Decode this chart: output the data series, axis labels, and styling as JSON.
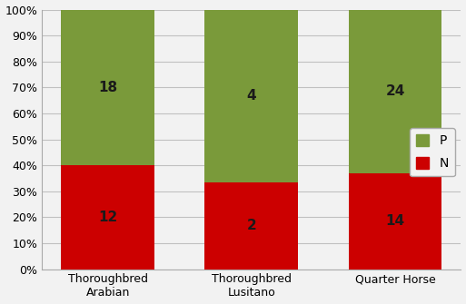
{
  "categories": [
    "Thoroughbred\nArabian",
    "Thoroughbred\nLusitano",
    "Quarter Horse"
  ],
  "n_values": [
    12,
    2,
    14
  ],
  "p_values": [
    18,
    4,
    24
  ],
  "n_pct": [
    40.0,
    33.333,
    36.842
  ],
  "p_pct": [
    60.0,
    66.667,
    63.158
  ],
  "color_n": "#cc0000",
  "color_p": "#7a9a3a",
  "label_n": "N",
  "label_p": "P",
  "yticks": [
    0,
    10,
    20,
    30,
    40,
    50,
    60,
    70,
    80,
    90,
    100
  ],
  "ylim": [
    0,
    100
  ],
  "bar_width": 0.65,
  "annotation_fontsize": 11,
  "legend_fontsize": 10,
  "tick_fontsize": 9,
  "annotation_color": "#1a1a1a",
  "background_color": "#f2f2f2",
  "plot_bg_color": "#f2f2f2"
}
